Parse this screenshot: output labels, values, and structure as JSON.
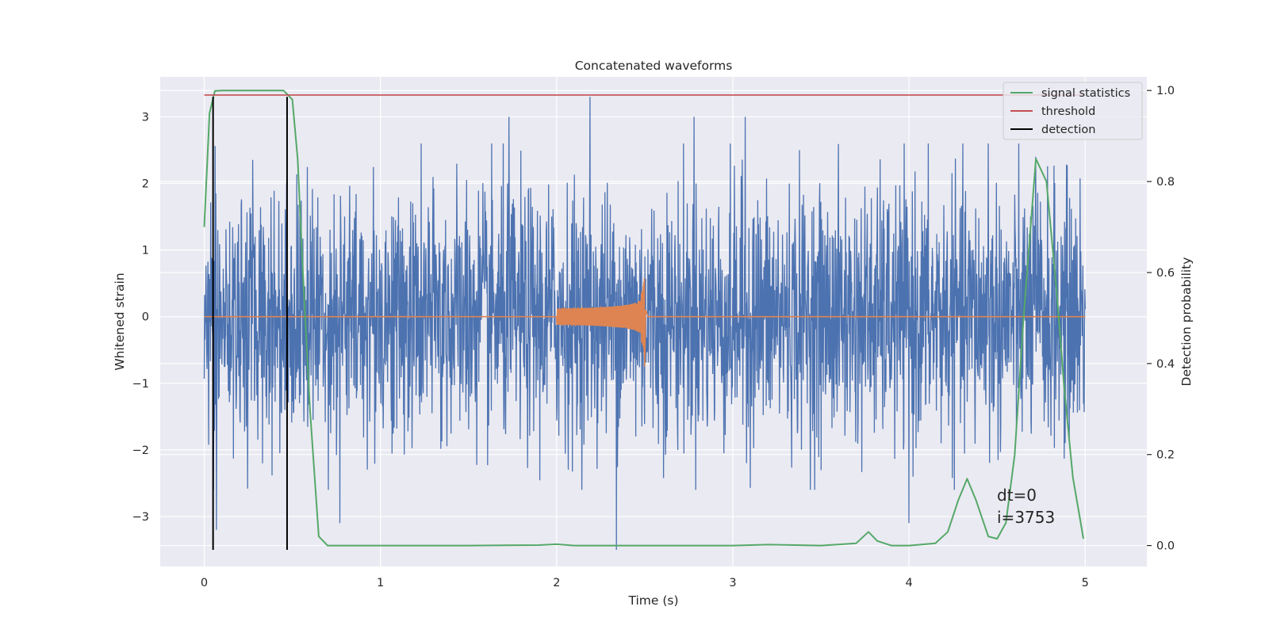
{
  "chart_data": {
    "type": "line",
    "title": "Concatenated waveforms",
    "xlabel": "Time (s)",
    "ylabel": "Whitened strain",
    "ylabel_right": "Detection probability",
    "xlim": [
      -0.25,
      5.35
    ],
    "ylim": [
      -3.75,
      3.6
    ],
    "ylim_right": [
      -0.046,
      1.03
    ],
    "x_ticks": [
      0,
      1,
      2,
      3,
      4,
      5
    ],
    "y_ticks": [
      -3,
      -2,
      -1,
      0,
      1,
      2,
      3
    ],
    "y_ticks_right": [
      0.0,
      0.2,
      0.4,
      0.6,
      0.8,
      1.0
    ],
    "tick_labels": {
      "x": [
        "0",
        "1",
        "2",
        "3",
        "4",
        "5"
      ],
      "y": [
        "−3",
        "−2",
        "−1",
        "0",
        "1",
        "2",
        "3"
      ],
      "y_right": [
        "0.0",
        "0.2",
        "0.4",
        "0.6",
        "0.8",
        "1.0"
      ]
    },
    "grid": true,
    "legend_position": "top-right",
    "legend": [
      "signal statistics",
      "threshold",
      "detection"
    ],
    "annotation": {
      "lines": [
        "dt=0",
        "i=3753"
      ]
    },
    "colors": {
      "strain": "#4c72b0",
      "injected_signal": "#dd8452",
      "signal_statistics": "#55a868",
      "threshold": "#c44e52",
      "detection": "#000000",
      "background": "#eaeaf2",
      "grid": "#ffffff"
    },
    "series": [
      {
        "name": "",
        "axis": "left",
        "description_values": "whitened noise strain, amplitude mostly within ±2.5, spikes to ±3.3",
        "x_range": [
          0,
          5
        ],
        "spikes": [
          [
            2.19,
            3.3
          ],
          [
            2.34,
            -3.5
          ],
          [
            1.73,
            3.0
          ],
          [
            2.78,
            3.0
          ],
          [
            3.07,
            3.0
          ],
          [
            4.0,
            -3.1
          ],
          [
            0.07,
            -3.2
          ],
          [
            0.77,
            -3.1
          ],
          [
            4.45,
            2.6
          ],
          [
            4.72,
            2.4
          ]
        ]
      },
      {
        "name": "",
        "axis": "left",
        "description_values": "chirp injection between 2.0 s and 2.5 s, amplitude growing to ~0.6",
        "x_range": [
          2.0,
          2.52
        ],
        "peak_amplitude": 0.6
      },
      {
        "name": "signal statistics",
        "axis": "right",
        "x": [
          0.0,
          0.03,
          0.06,
          0.1,
          0.2,
          0.3,
          0.4,
          0.45,
          0.5,
          0.53,
          0.56,
          0.6,
          0.65,
          0.7,
          1.0,
          1.5,
          1.9,
          2.0,
          2.1,
          2.5,
          3.0,
          3.2,
          3.5,
          3.7,
          3.77,
          3.82,
          3.9,
          4.0,
          4.15,
          4.22,
          4.28,
          4.33,
          4.38,
          4.45,
          4.5,
          4.55,
          4.6,
          4.65,
          4.72,
          4.78,
          4.84,
          4.88,
          4.93,
          4.97,
          4.99
        ],
        "y": [
          0.7,
          0.95,
          0.999,
          1.0,
          1.0,
          1.0,
          1.0,
          1.0,
          0.98,
          0.85,
          0.6,
          0.3,
          0.02,
          0.0,
          0.0,
          0.0,
          0.001,
          0.003,
          0.0,
          0.0,
          0.0,
          0.002,
          0.0,
          0.005,
          0.03,
          0.01,
          0.0,
          0.0,
          0.005,
          0.03,
          0.1,
          0.147,
          0.1,
          0.02,
          0.015,
          0.05,
          0.2,
          0.5,
          0.85,
          0.8,
          0.55,
          0.35,
          0.15,
          0.06,
          0.015
        ]
      },
      {
        "name": "threshold",
        "axis": "right",
        "x": [
          0.0,
          5.0
        ],
        "y": [
          0.99,
          0.99
        ]
      },
      {
        "name": "detection",
        "axis": "left",
        "type": "vlines",
        "x": [
          0.05,
          0.47
        ],
        "y_range": [
          -3.5,
          3.3
        ]
      }
    ]
  }
}
